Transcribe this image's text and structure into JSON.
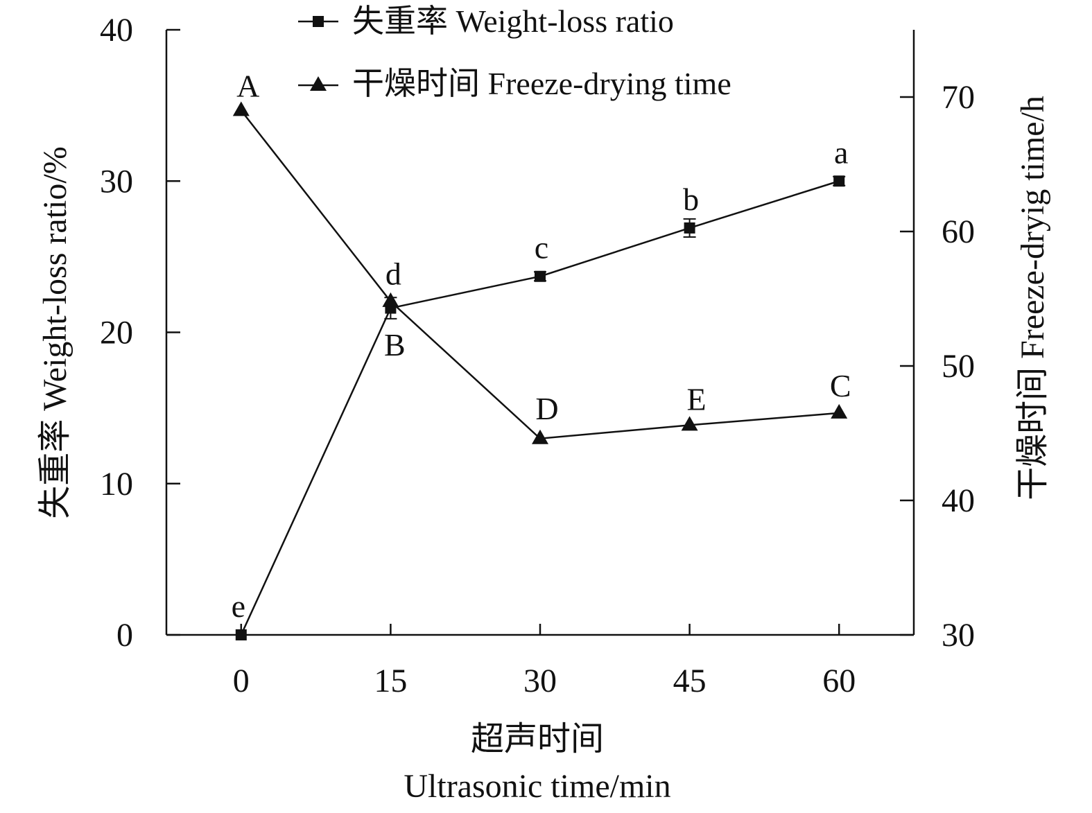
{
  "chart_data": {
    "type": "line",
    "x": [
      0,
      15,
      30,
      45,
      60
    ],
    "xlim": [
      -7.5,
      67.5
    ],
    "x_ticks": [
      "0",
      "15",
      "30",
      "45",
      "60"
    ],
    "xlabel_zh": "超声时间",
    "xlabel_en": "Ultrasonic time/min",
    "y_left": {
      "label": "失重率 Weight-loss ratio/%",
      "lim": [
        0,
        40
      ],
      "ticks": [
        "0",
        "10",
        "20",
        "30",
        "40"
      ]
    },
    "y_right": {
      "label": "干燥时间 Freeze-dryig time/h",
      "lim": [
        30,
        75
      ],
      "ticks": [
        "30",
        "40",
        "50",
        "60",
        "70"
      ]
    },
    "series": [
      {
        "name": "失重率 Weight-loss ratio",
        "axis": "left",
        "marker": "square",
        "values": [
          0,
          21.6,
          23.7,
          26.9,
          30.0
        ],
        "errors": [
          0,
          0.7,
          0.3,
          0.6,
          0.3
        ],
        "labels": [
          "e",
          "d",
          "c",
          "b",
          "a"
        ]
      },
      {
        "name": "干燥时间 Freeze-drying time",
        "axis": "right",
        "marker": "triangle",
        "values": [
          69.0,
          54.8,
          44.6,
          45.6,
          46.5
        ],
        "labels": [
          "A",
          "B",
          "D",
          "E",
          "C"
        ]
      }
    ],
    "legend_position": "top-center",
    "grid": false
  }
}
